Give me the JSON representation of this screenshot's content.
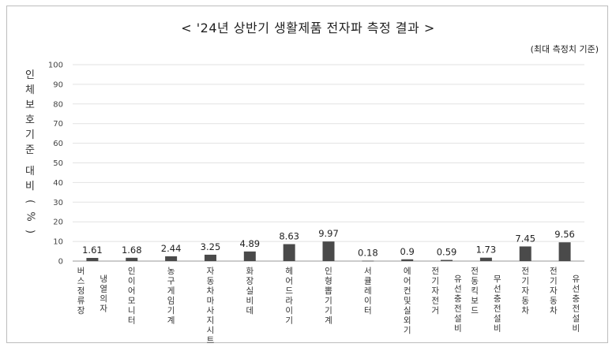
{
  "chart_data": {
    "type": "bar",
    "title": "< '24년 상반기 생활제품 전자파 측정 결과 >",
    "note": "(최대 측정치 기준)",
    "ylabel": "인체보호기준 대비(%)",
    "xlabel": "",
    "ylim": [
      0,
      100
    ],
    "yticks": [
      0,
      10,
      20,
      30,
      40,
      50,
      60,
      70,
      80,
      90,
      100
    ],
    "grid": true,
    "bar_color": "#4a4a4a",
    "categories": [
      [
        "버스정류장",
        "냉열의자"
      ],
      [
        "인이어모니터"
      ],
      [
        "농구게임기계"
      ],
      [
        "자동차마사지시트"
      ],
      [
        "화장실비데"
      ],
      [
        "헤어드라이기"
      ],
      [
        "인형뽑기기계"
      ],
      [
        "서큘레이터"
      ],
      [
        "에어컨및실외기"
      ],
      [
        "전기자전거",
        "유선충전설비"
      ],
      [
        "전동킥보드",
        "무선충전설비"
      ],
      [
        "전기자동차"
      ],
      [
        "전기자동차",
        "유선충전설비"
      ]
    ],
    "values": [
      1.61,
      1.68,
      2.44,
      3.25,
      4.89,
      8.63,
      9.97,
      0.18,
      0.9,
      0.59,
      1.73,
      7.45,
      9.56
    ]
  }
}
